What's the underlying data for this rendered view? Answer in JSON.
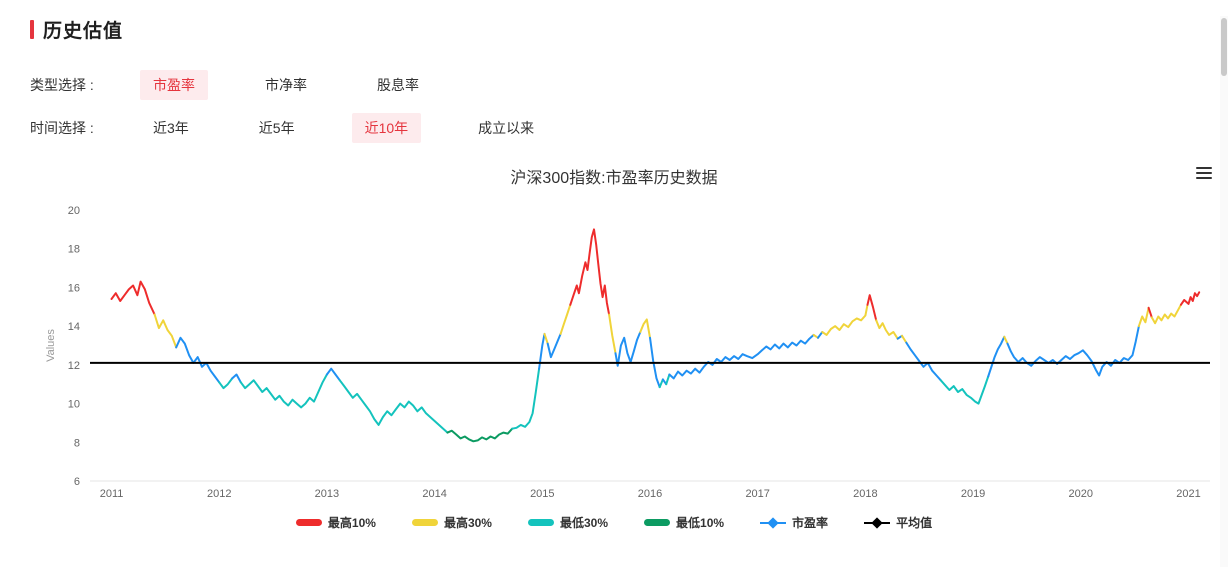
{
  "header": {
    "title": "历史估值",
    "accent_color": "#e5353e"
  },
  "controls": {
    "type": {
      "label": "类型选择 :",
      "options": [
        {
          "label": "市盈率",
          "active": true
        },
        {
          "label": "市净率",
          "active": false
        },
        {
          "label": "股息率",
          "active": false
        }
      ]
    },
    "time": {
      "label": "时间选择 :",
      "options": [
        {
          "label": "近3年",
          "active": false
        },
        {
          "label": "近5年",
          "active": false
        },
        {
          "label": "近10年",
          "active": true
        },
        {
          "label": "成立以来",
          "active": false
        }
      ]
    }
  },
  "chart_data": {
    "type": "line",
    "title": "沪深300指数:市盈率历史数据",
    "xlabel": "",
    "ylabel": "Values",
    "grid": false,
    "legend_position": "bottom",
    "ylim": [
      6,
      20
    ],
    "xlim": [
      2010.8,
      2021.2
    ],
    "y_ticks": [
      6,
      8,
      10,
      12,
      14,
      16,
      18,
      20
    ],
    "x_ticks": [
      2011,
      2012,
      2013,
      2014,
      2015,
      2016,
      2017,
      2018,
      2019,
      2020,
      2021
    ],
    "series_name": "市盈率",
    "average_value": 12.1,
    "bands": {
      "thresholds": {
        "p10": 8.65,
        "p30": 11.2,
        "p70": 13.45,
        "p90": 14.9
      },
      "colors": {
        "top10": "#ee2c2c",
        "top30": "#f0d43a",
        "mid": "#2090f3",
        "bottom30": "#14c3bd",
        "bottom10": "#0c9b62",
        "average": "#000000"
      }
    },
    "legend": [
      {
        "label": "最高10%",
        "color": "#ee2c2c",
        "marker": "pill"
      },
      {
        "label": "最高30%",
        "color": "#f0d43a",
        "marker": "pill"
      },
      {
        "label": "最低30%",
        "color": "#14c3bd",
        "marker": "pill"
      },
      {
        "label": "最低10%",
        "color": "#0c9b62",
        "marker": "pill"
      },
      {
        "label": "市盈率",
        "color": "#2090f3",
        "marker": "diamond-line"
      },
      {
        "label": "平均值",
        "color": "#000000",
        "marker": "diamond-line"
      }
    ],
    "points": [
      [
        2011.0,
        15.4
      ],
      [
        2011.04,
        15.7
      ],
      [
        2011.08,
        15.3
      ],
      [
        2011.12,
        15.6
      ],
      [
        2011.16,
        15.9
      ],
      [
        2011.2,
        16.1
      ],
      [
        2011.24,
        15.6
      ],
      [
        2011.27,
        16.3
      ],
      [
        2011.31,
        15.9
      ],
      [
        2011.35,
        15.2
      ],
      [
        2011.4,
        14.6
      ],
      [
        2011.44,
        13.9
      ],
      [
        2011.48,
        14.3
      ],
      [
        2011.52,
        13.8
      ],
      [
        2011.56,
        13.5
      ],
      [
        2011.6,
        12.9
      ],
      [
        2011.64,
        13.4
      ],
      [
        2011.68,
        13.1
      ],
      [
        2011.72,
        12.5
      ],
      [
        2011.76,
        12.1
      ],
      [
        2011.8,
        12.4
      ],
      [
        2011.84,
        11.9
      ],
      [
        2011.88,
        12.1
      ],
      [
        2011.92,
        11.7
      ],
      [
        2011.96,
        11.4
      ],
      [
        2012.0,
        11.1
      ],
      [
        2012.04,
        10.8
      ],
      [
        2012.08,
        11.0
      ],
      [
        2012.12,
        11.3
      ],
      [
        2012.16,
        11.5
      ],
      [
        2012.2,
        11.1
      ],
      [
        2012.24,
        10.8
      ],
      [
        2012.28,
        11.0
      ],
      [
        2012.32,
        11.2
      ],
      [
        2012.36,
        10.9
      ],
      [
        2012.4,
        10.6
      ],
      [
        2012.44,
        10.8
      ],
      [
        2012.48,
        10.5
      ],
      [
        2012.52,
        10.2
      ],
      [
        2012.56,
        10.4
      ],
      [
        2012.6,
        10.1
      ],
      [
        2012.64,
        9.9
      ],
      [
        2012.68,
        10.2
      ],
      [
        2012.72,
        10.0
      ],
      [
        2012.76,
        9.8
      ],
      [
        2012.8,
        10.0
      ],
      [
        2012.84,
        10.3
      ],
      [
        2012.88,
        10.1
      ],
      [
        2012.92,
        10.6
      ],
      [
        2012.96,
        11.1
      ],
      [
        2013.0,
        11.5
      ],
      [
        2013.04,
        11.8
      ],
      [
        2013.08,
        11.5
      ],
      [
        2013.12,
        11.2
      ],
      [
        2013.16,
        10.9
      ],
      [
        2013.2,
        10.6
      ],
      [
        2013.24,
        10.3
      ],
      [
        2013.28,
        10.5
      ],
      [
        2013.32,
        10.2
      ],
      [
        2013.36,
        9.9
      ],
      [
        2013.4,
        9.6
      ],
      [
        2013.44,
        9.2
      ],
      [
        2013.48,
        8.9
      ],
      [
        2013.52,
        9.3
      ],
      [
        2013.56,
        9.6
      ],
      [
        2013.6,
        9.4
      ],
      [
        2013.64,
        9.7
      ],
      [
        2013.68,
        10.0
      ],
      [
        2013.72,
        9.8
      ],
      [
        2013.76,
        10.1
      ],
      [
        2013.8,
        9.9
      ],
      [
        2013.84,
        9.6
      ],
      [
        2013.88,
        9.8
      ],
      [
        2013.92,
        9.5
      ],
      [
        2013.96,
        9.3
      ],
      [
        2014.0,
        9.1
      ],
      [
        2014.04,
        8.9
      ],
      [
        2014.08,
        8.7
      ],
      [
        2014.12,
        8.5
      ],
      [
        2014.16,
        8.6
      ],
      [
        2014.2,
        8.4
      ],
      [
        2014.24,
        8.2
      ],
      [
        2014.28,
        8.3
      ],
      [
        2014.32,
        8.15
      ],
      [
        2014.36,
        8.05
      ],
      [
        2014.4,
        8.1
      ],
      [
        2014.44,
        8.25
      ],
      [
        2014.48,
        8.15
      ],
      [
        2014.52,
        8.3
      ],
      [
        2014.56,
        8.2
      ],
      [
        2014.6,
        8.4
      ],
      [
        2014.64,
        8.5
      ],
      [
        2014.68,
        8.45
      ],
      [
        2014.72,
        8.7
      ],
      [
        2014.76,
        8.75
      ],
      [
        2014.8,
        8.9
      ],
      [
        2014.84,
        8.8
      ],
      [
        2014.88,
        9.05
      ],
      [
        2014.91,
        9.5
      ],
      [
        2014.94,
        10.6
      ],
      [
        2014.97,
        11.8
      ],
      [
        2015.0,
        13.0
      ],
      [
        2015.02,
        13.6
      ],
      [
        2015.05,
        13.1
      ],
      [
        2015.08,
        12.4
      ],
      [
        2015.11,
        12.8
      ],
      [
        2015.14,
        13.2
      ],
      [
        2015.17,
        13.6
      ],
      [
        2015.2,
        14.1
      ],
      [
        2015.23,
        14.6
      ],
      [
        2015.26,
        15.1
      ],
      [
        2015.29,
        15.6
      ],
      [
        2015.32,
        16.1
      ],
      [
        2015.34,
        15.7
      ],
      [
        2015.37,
        16.6
      ],
      [
        2015.4,
        17.3
      ],
      [
        2015.42,
        16.9
      ],
      [
        2015.44,
        17.8
      ],
      [
        2015.46,
        18.6
      ],
      [
        2015.48,
        19.0
      ],
      [
        2015.5,
        18.2
      ],
      [
        2015.52,
        17.2
      ],
      [
        2015.54,
        16.2
      ],
      [
        2015.56,
        15.5
      ],
      [
        2015.58,
        16.1
      ],
      [
        2015.6,
        15.2
      ],
      [
        2015.62,
        14.6
      ],
      [
        2015.65,
        13.5
      ],
      [
        2015.68,
        12.6
      ],
      [
        2015.7,
        11.95
      ],
      [
        2015.73,
        13.0
      ],
      [
        2015.76,
        13.4
      ],
      [
        2015.79,
        12.6
      ],
      [
        2015.82,
        12.15
      ],
      [
        2015.85,
        12.7
      ],
      [
        2015.88,
        13.3
      ],
      [
        2015.91,
        13.7
      ],
      [
        2015.94,
        14.1
      ],
      [
        2015.97,
        14.35
      ],
      [
        2016.0,
        13.4
      ],
      [
        2016.03,
        12.2
      ],
      [
        2016.06,
        11.3
      ],
      [
        2016.09,
        10.85
      ],
      [
        2016.12,
        11.25
      ],
      [
        2016.15,
        11.0
      ],
      [
        2016.18,
        11.5
      ],
      [
        2016.22,
        11.3
      ],
      [
        2016.26,
        11.65
      ],
      [
        2016.3,
        11.45
      ],
      [
        2016.34,
        11.7
      ],
      [
        2016.38,
        11.55
      ],
      [
        2016.42,
        11.8
      ],
      [
        2016.46,
        11.6
      ],
      [
        2016.5,
        11.9
      ],
      [
        2016.54,
        12.15
      ],
      [
        2016.58,
        12.0
      ],
      [
        2016.62,
        12.3
      ],
      [
        2016.66,
        12.15
      ],
      [
        2016.7,
        12.4
      ],
      [
        2016.74,
        12.25
      ],
      [
        2016.78,
        12.45
      ],
      [
        2016.82,
        12.3
      ],
      [
        2016.86,
        12.55
      ],
      [
        2016.9,
        12.45
      ],
      [
        2016.95,
        12.35
      ],
      [
        2017.0,
        12.55
      ],
      [
        2017.04,
        12.75
      ],
      [
        2017.08,
        12.95
      ],
      [
        2017.12,
        12.8
      ],
      [
        2017.16,
        13.05
      ],
      [
        2017.2,
        12.85
      ],
      [
        2017.24,
        13.1
      ],
      [
        2017.28,
        12.9
      ],
      [
        2017.32,
        13.15
      ],
      [
        2017.36,
        13.0
      ],
      [
        2017.4,
        13.25
      ],
      [
        2017.44,
        13.1
      ],
      [
        2017.48,
        13.35
      ],
      [
        2017.52,
        13.55
      ],
      [
        2017.56,
        13.4
      ],
      [
        2017.6,
        13.7
      ],
      [
        2017.64,
        13.55
      ],
      [
        2017.68,
        13.85
      ],
      [
        2017.72,
        14.0
      ],
      [
        2017.76,
        13.8
      ],
      [
        2017.8,
        14.1
      ],
      [
        2017.84,
        13.95
      ],
      [
        2017.88,
        14.25
      ],
      [
        2017.92,
        14.4
      ],
      [
        2017.96,
        14.3
      ],
      [
        2018.0,
        14.55
      ],
      [
        2018.02,
        15.1
      ],
      [
        2018.04,
        15.6
      ],
      [
        2018.07,
        15.0
      ],
      [
        2018.1,
        14.3
      ],
      [
        2018.13,
        13.9
      ],
      [
        2018.16,
        14.15
      ],
      [
        2018.19,
        13.8
      ],
      [
        2018.22,
        13.55
      ],
      [
        2018.26,
        13.7
      ],
      [
        2018.3,
        13.35
      ],
      [
        2018.34,
        13.5
      ],
      [
        2018.38,
        13.15
      ],
      [
        2018.42,
        12.8
      ],
      [
        2018.46,
        12.5
      ],
      [
        2018.5,
        12.2
      ],
      [
        2018.54,
        11.9
      ],
      [
        2018.58,
        12.1
      ],
      [
        2018.62,
        11.7
      ],
      [
        2018.66,
        11.45
      ],
      [
        2018.7,
        11.2
      ],
      [
        2018.74,
        10.95
      ],
      [
        2018.78,
        10.7
      ],
      [
        2018.82,
        10.9
      ],
      [
        2018.86,
        10.6
      ],
      [
        2018.9,
        10.75
      ],
      [
        2018.94,
        10.45
      ],
      [
        2018.98,
        10.3
      ],
      [
        2019.02,
        10.1
      ],
      [
        2019.05,
        10.0
      ],
      [
        2019.08,
        10.45
      ],
      [
        2019.11,
        10.9
      ],
      [
        2019.14,
        11.4
      ],
      [
        2019.17,
        11.9
      ],
      [
        2019.2,
        12.4
      ],
      [
        2019.23,
        12.8
      ],
      [
        2019.26,
        13.1
      ],
      [
        2019.29,
        13.45
      ],
      [
        2019.32,
        13.1
      ],
      [
        2019.35,
        12.7
      ],
      [
        2019.38,
        12.4
      ],
      [
        2019.42,
        12.15
      ],
      [
        2019.46,
        12.35
      ],
      [
        2019.5,
        12.1
      ],
      [
        2019.54,
        11.95
      ],
      [
        2019.58,
        12.2
      ],
      [
        2019.62,
        12.4
      ],
      [
        2019.66,
        12.25
      ],
      [
        2019.7,
        12.1
      ],
      [
        2019.74,
        12.25
      ],
      [
        2019.78,
        12.05
      ],
      [
        2019.82,
        12.25
      ],
      [
        2019.86,
        12.45
      ],
      [
        2019.9,
        12.3
      ],
      [
        2019.94,
        12.5
      ],
      [
        2019.98,
        12.6
      ],
      [
        2020.02,
        12.75
      ],
      [
        2020.06,
        12.5
      ],
      [
        2020.1,
        12.2
      ],
      [
        2020.14,
        11.75
      ],
      [
        2020.17,
        11.45
      ],
      [
        2020.2,
        11.9
      ],
      [
        2020.24,
        12.15
      ],
      [
        2020.28,
        11.95
      ],
      [
        2020.32,
        12.25
      ],
      [
        2020.36,
        12.1
      ],
      [
        2020.4,
        12.35
      ],
      [
        2020.44,
        12.25
      ],
      [
        2020.48,
        12.5
      ],
      [
        2020.51,
        13.2
      ],
      [
        2020.54,
        14.0
      ],
      [
        2020.57,
        14.5
      ],
      [
        2020.6,
        14.2
      ],
      [
        2020.63,
        14.95
      ],
      [
        2020.66,
        14.45
      ],
      [
        2020.69,
        14.15
      ],
      [
        2020.72,
        14.5
      ],
      [
        2020.75,
        14.3
      ],
      [
        2020.78,
        14.6
      ],
      [
        2020.81,
        14.4
      ],
      [
        2020.84,
        14.65
      ],
      [
        2020.87,
        14.5
      ],
      [
        2020.9,
        14.8
      ],
      [
        2020.93,
        15.1
      ],
      [
        2020.96,
        15.35
      ],
      [
        2021.0,
        15.15
      ],
      [
        2021.02,
        15.5
      ],
      [
        2021.04,
        15.3
      ],
      [
        2021.06,
        15.7
      ],
      [
        2021.08,
        15.55
      ],
      [
        2021.1,
        15.75
      ]
    ]
  }
}
